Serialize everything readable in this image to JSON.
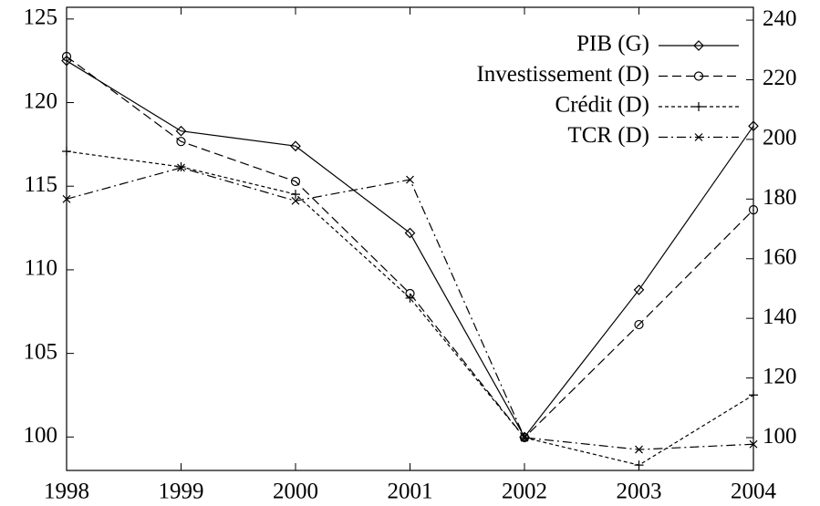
{
  "chart_data": {
    "type": "line",
    "x": [
      1998,
      1999,
      2000,
      2001,
      2002,
      2003,
      2004
    ],
    "xlim": [
      1998,
      2004
    ],
    "xticks": [
      1998,
      1999,
      2000,
      2001,
      2002,
      2003,
      2004
    ],
    "ylim": [
      98,
      125.7
    ],
    "yticks": [
      100,
      105,
      110,
      115,
      120,
      125
    ],
    "y2lim": [
      89,
      244.3
    ],
    "y2ticks": [
      100,
      120,
      140,
      160,
      180,
      200,
      220,
      240
    ],
    "legend": "top-right",
    "series": [
      {
        "name": "PIB (G)",
        "color": "#000000",
        "marker": "diamond",
        "dash": "solid",
        "values": [
          122.5,
          118.3,
          117.4,
          112.2,
          100,
          108.8,
          118.6
        ]
      },
      {
        "name": "Investissement (D)",
        "color": "#000000",
        "marker": "circle",
        "dash": "dashed",
        "axis": "y2",
        "values": [
          227.8,
          199.3,
          185.9,
          148.3,
          100,
          137.9,
          176.4
        ]
      },
      {
        "name": "Crédit (D)",
        "color": "#000000",
        "marker": "plus",
        "dash": "dotted",
        "axis": "y2",
        "values": [
          196,
          190.8,
          181.6,
          146.8,
          100,
          90.8,
          114.3
        ]
      },
      {
        "name": "TCR (D)",
        "color": "#000000",
        "marker": "cross",
        "dash": "dashdot",
        "axis": "y2",
        "values": [
          180,
          190.5,
          179.4,
          186.5,
          100,
          96,
          97.8
        ]
      }
    ]
  }
}
